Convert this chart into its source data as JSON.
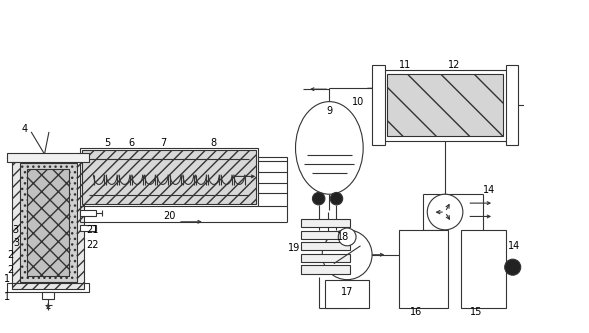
{
  "bg_color": "#ffffff",
  "lc": "#333333",
  "lw": 0.8,
  "fig_width": 5.89,
  "fig_height": 3.33,
  "dpi": 100
}
